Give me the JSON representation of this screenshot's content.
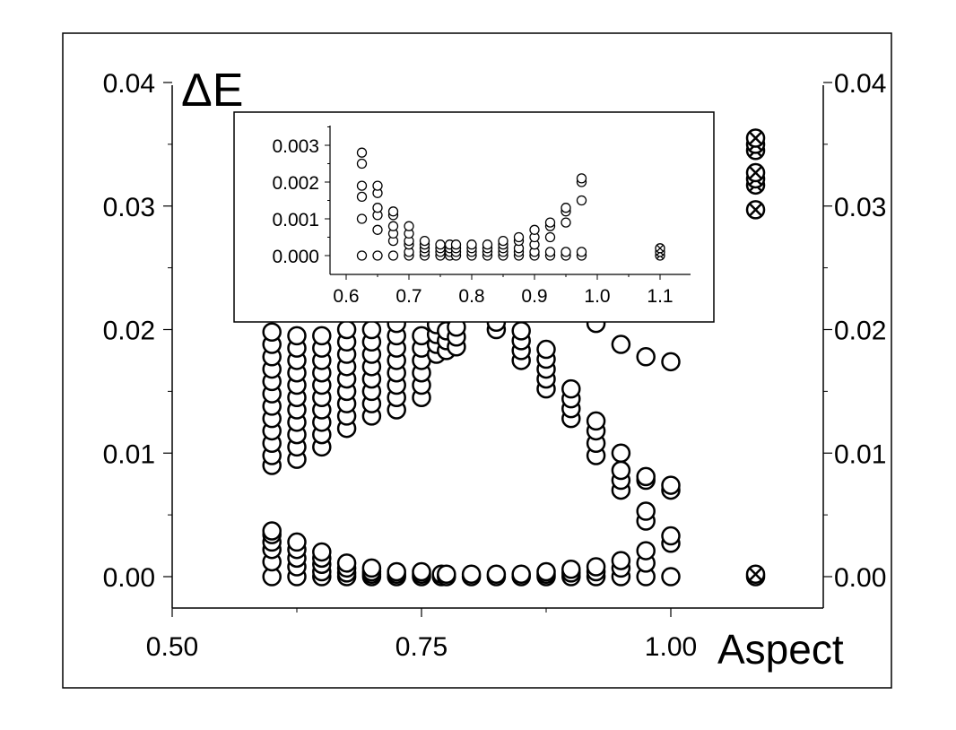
{
  "chart_data": [
    {
      "id": "main",
      "type": "scatter",
      "title": "",
      "ylabel": "ΔE",
      "xlabel": "Aspect",
      "xlim": [
        0.5,
        1.1
      ],
      "ylim": [
        0.0,
        0.04
      ],
      "x_ticks": [
        "0.50",
        "0.75",
        "1.00"
      ],
      "y_ticks": [
        "0.00",
        "0.01",
        "0.02",
        "0.03",
        "0.04"
      ],
      "y_ticks_right": [
        "0.00",
        "0.01",
        "0.02",
        "0.03",
        "0.04"
      ],
      "grid": false,
      "series": [
        {
          "marker": "open-circle",
          "points": [
            [
              0.6,
              0.0
            ],
            [
              0.6,
              0.0012
            ],
            [
              0.6,
              0.0022
            ],
            [
              0.6,
              0.0028
            ],
            [
              0.6,
              0.0034
            ],
            [
              0.6,
              0.0037
            ],
            [
              0.625,
              0.0
            ],
            [
              0.625,
              0.0008
            ],
            [
              0.625,
              0.0015
            ],
            [
              0.625,
              0.0022
            ],
            [
              0.625,
              0.0028
            ],
            [
              0.65,
              0.0
            ],
            [
              0.65,
              0.0004
            ],
            [
              0.65,
              0.001
            ],
            [
              0.65,
              0.0015
            ],
            [
              0.65,
              0.002
            ],
            [
              0.675,
              0.0
            ],
            [
              0.675,
              0.0003
            ],
            [
              0.675,
              0.0007
            ],
            [
              0.675,
              0.0011
            ],
            [
              0.7,
              0.0
            ],
            [
              0.7,
              0.0002
            ],
            [
              0.7,
              0.0004
            ],
            [
              0.7,
              0.0007
            ],
            [
              0.725,
              0.0
            ],
            [
              0.725,
              0.0002
            ],
            [
              0.725,
              0.0004
            ],
            [
              0.75,
              0.0
            ],
            [
              0.75,
              0.0002
            ],
            [
              0.75,
              0.0004
            ],
            [
              0.77,
              0.0
            ],
            [
              0.77,
              0.0002
            ],
            [
              0.775,
              0.0
            ],
            [
              0.775,
              0.0002
            ],
            [
              0.8,
              0.0
            ],
            [
              0.8,
              0.0002
            ],
            [
              0.825,
              0.0
            ],
            [
              0.825,
              0.0002
            ],
            [
              0.85,
              0.0
            ],
            [
              0.85,
              0.0002
            ],
            [
              0.875,
              0.0
            ],
            [
              0.875,
              0.0002
            ],
            [
              0.875,
              0.0004
            ],
            [
              0.9,
              0.0
            ],
            [
              0.9,
              0.0003
            ],
            [
              0.9,
              0.0006
            ],
            [
              0.925,
              0.0
            ],
            [
              0.925,
              0.0004
            ],
            [
              0.925,
              0.0008
            ],
            [
              0.95,
              0.0
            ],
            [
              0.95,
              0.0007
            ],
            [
              0.95,
              0.0013
            ],
            [
              0.975,
              0.0
            ],
            [
              0.975,
              0.0011
            ],
            [
              0.975,
              0.0021
            ],
            [
              1.0,
              0.0
            ],
            [
              1.0,
              0.0027
            ],
            [
              1.0,
              0.0033
            ],
            [
              0.975,
              0.0045
            ],
            [
              0.975,
              0.0053
            ],
            [
              0.6,
              0.009
            ],
            [
              0.6,
              0.0098
            ],
            [
              0.6,
              0.0108
            ],
            [
              0.6,
              0.0118
            ],
            [
              0.6,
              0.0128
            ],
            [
              0.6,
              0.0138
            ],
            [
              0.6,
              0.0148
            ],
            [
              0.6,
              0.0158
            ],
            [
              0.6,
              0.0168
            ],
            [
              0.6,
              0.0178
            ],
            [
              0.6,
              0.0188
            ],
            [
              0.6,
              0.0198
            ],
            [
              0.625,
              0.0095
            ],
            [
              0.625,
              0.0105
            ],
            [
              0.625,
              0.0115
            ],
            [
              0.625,
              0.0125
            ],
            [
              0.625,
              0.0135
            ],
            [
              0.625,
              0.0145
            ],
            [
              0.625,
              0.0155
            ],
            [
              0.625,
              0.0165
            ],
            [
              0.625,
              0.0175
            ],
            [
              0.625,
              0.0185
            ],
            [
              0.625,
              0.0195
            ],
            [
              0.65,
              0.0105
            ],
            [
              0.65,
              0.0115
            ],
            [
              0.65,
              0.0125
            ],
            [
              0.65,
              0.0135
            ],
            [
              0.65,
              0.0145
            ],
            [
              0.65,
              0.0155
            ],
            [
              0.65,
              0.0165
            ],
            [
              0.65,
              0.0175
            ],
            [
              0.65,
              0.0185
            ],
            [
              0.65,
              0.0195
            ],
            [
              0.675,
              0.012
            ],
            [
              0.675,
              0.013
            ],
            [
              0.675,
              0.014
            ],
            [
              0.675,
              0.015
            ],
            [
              0.675,
              0.016
            ],
            [
              0.675,
              0.017
            ],
            [
              0.675,
              0.018
            ],
            [
              0.675,
              0.019
            ],
            [
              0.675,
              0.02
            ],
            [
              0.7,
              0.013
            ],
            [
              0.7,
              0.014
            ],
            [
              0.7,
              0.015
            ],
            [
              0.7,
              0.016
            ],
            [
              0.7,
              0.017
            ],
            [
              0.7,
              0.018
            ],
            [
              0.7,
              0.019
            ],
            [
              0.7,
              0.02
            ],
            [
              0.725,
              0.0135
            ],
            [
              0.725,
              0.0145
            ],
            [
              0.725,
              0.0155
            ],
            [
              0.725,
              0.0165
            ],
            [
              0.725,
              0.0175
            ],
            [
              0.725,
              0.0185
            ],
            [
              0.725,
              0.0195
            ],
            [
              0.725,
              0.0205
            ],
            [
              0.75,
              0.0145
            ],
            [
              0.75,
              0.0155
            ],
            [
              0.75,
              0.0165
            ],
            [
              0.75,
              0.0175
            ],
            [
              0.75,
              0.0185
            ],
            [
              0.75,
              0.0195
            ],
            [
              0.765,
              0.018
            ],
            [
              0.765,
              0.0188
            ],
            [
              0.765,
              0.0196
            ],
            [
              0.765,
              0.0204
            ],
            [
              0.775,
              0.0183
            ],
            [
              0.775,
              0.0191
            ],
            [
              0.775,
              0.0199
            ],
            [
              0.785,
              0.0186
            ],
            [
              0.785,
              0.0194
            ],
            [
              0.785,
              0.0202
            ],
            [
              0.825,
              0.02
            ],
            [
              0.825,
              0.0206
            ],
            [
              0.85,
              0.0175
            ],
            [
              0.85,
              0.0183
            ],
            [
              0.85,
              0.0191
            ],
            [
              0.85,
              0.0199
            ],
            [
              0.875,
              0.0152
            ],
            [
              0.875,
              0.016
            ],
            [
              0.875,
              0.0168
            ],
            [
              0.875,
              0.0176
            ],
            [
              0.875,
              0.0184
            ],
            [
              0.9,
              0.0128
            ],
            [
              0.9,
              0.0136
            ],
            [
              0.9,
              0.0144
            ],
            [
              0.9,
              0.0152
            ],
            [
              0.925,
              0.0098
            ],
            [
              0.925,
              0.0108
            ],
            [
              0.925,
              0.0118
            ],
            [
              0.925,
              0.0126
            ],
            [
              0.95,
              0.007
            ],
            [
              0.95,
              0.0078
            ],
            [
              0.95,
              0.0086
            ],
            [
              0.95,
              0.01
            ],
            [
              0.975,
              0.0078
            ],
            [
              0.975,
              0.0081
            ],
            [
              1.0,
              0.007
            ],
            [
              1.0,
              0.0074
            ],
            [
              0.925,
              0.0205
            ],
            [
              0.95,
              0.0188
            ],
            [
              0.975,
              0.0178
            ],
            [
              1.0,
              0.0174
            ]
          ]
        },
        {
          "marker": "crossed-circle",
          "points": [
            [
              1.085,
              0.0
            ],
            [
              1.085,
              0.0002
            ],
            [
              1.085,
              0.0297
            ],
            [
              1.085,
              0.0317
            ],
            [
              1.085,
              0.0322
            ],
            [
              1.085,
              0.0327
            ],
            [
              1.085,
              0.0345
            ],
            [
              1.085,
              0.035
            ],
            [
              1.085,
              0.0355
            ]
          ]
        }
      ]
    },
    {
      "id": "inset",
      "type": "scatter",
      "title": "",
      "xlim": [
        0.55,
        1.15
      ],
      "ylim": [
        -0.0003,
        0.0035
      ],
      "x_ticks": [
        "0.6",
        "0.7",
        "0.8",
        "0.9",
        "1.0",
        "1.1"
      ],
      "y_ticks": [
        "0.000",
        "0.001",
        "0.002",
        "0.003"
      ],
      "grid": false,
      "series": [
        {
          "marker": "open-circle",
          "points": [
            [
              0.625,
              0.0
            ],
            [
              0.625,
              0.001
            ],
            [
              0.625,
              0.0016
            ],
            [
              0.625,
              0.0019
            ],
            [
              0.625,
              0.0025
            ],
            [
              0.625,
              0.0028
            ],
            [
              0.65,
              0.0
            ],
            [
              0.65,
              0.0007
            ],
            [
              0.65,
              0.0011
            ],
            [
              0.65,
              0.0013
            ],
            [
              0.65,
              0.0017
            ],
            [
              0.65,
              0.0019
            ],
            [
              0.675,
              0.0
            ],
            [
              0.675,
              0.0004
            ],
            [
              0.675,
              0.0006
            ],
            [
              0.675,
              0.0008
            ],
            [
              0.675,
              0.0011
            ],
            [
              0.675,
              0.0012
            ],
            [
              0.7,
              0.0
            ],
            [
              0.7,
              0.0001
            ],
            [
              0.7,
              0.0003
            ],
            [
              0.7,
              0.0004
            ],
            [
              0.7,
              0.0006
            ],
            [
              0.7,
              0.0008
            ],
            [
              0.725,
              0.0
            ],
            [
              0.725,
              0.0001
            ],
            [
              0.725,
              0.0002
            ],
            [
              0.725,
              0.0003
            ],
            [
              0.725,
              0.0004
            ],
            [
              0.75,
              0.0
            ],
            [
              0.75,
              0.0001
            ],
            [
              0.75,
              0.0002
            ],
            [
              0.75,
              0.0003
            ],
            [
              0.765,
              0.0
            ],
            [
              0.765,
              0.0001
            ],
            [
              0.765,
              0.0002
            ],
            [
              0.765,
              0.0003
            ],
            [
              0.775,
              0.0
            ],
            [
              0.775,
              0.0001
            ],
            [
              0.775,
              0.0002
            ],
            [
              0.775,
              0.0003
            ],
            [
              0.8,
              0.0
            ],
            [
              0.8,
              0.0001
            ],
            [
              0.8,
              0.0002
            ],
            [
              0.8,
              0.0003
            ],
            [
              0.825,
              0.0
            ],
            [
              0.825,
              0.0001
            ],
            [
              0.825,
              0.0002
            ],
            [
              0.825,
              0.0003
            ],
            [
              0.85,
              0.0
            ],
            [
              0.85,
              0.0001
            ],
            [
              0.85,
              0.0002
            ],
            [
              0.85,
              0.0003
            ],
            [
              0.85,
              0.0004
            ],
            [
              0.875,
              0.0
            ],
            [
              0.875,
              0.0001
            ],
            [
              0.875,
              0.0002
            ],
            [
              0.875,
              0.0004
            ],
            [
              0.875,
              0.0005
            ],
            [
              0.9,
              0.0
            ],
            [
              0.9,
              0.0001
            ],
            [
              0.9,
              0.0003
            ],
            [
              0.9,
              0.0005
            ],
            [
              0.9,
              0.0007
            ],
            [
              0.925,
              0.0
            ],
            [
              0.925,
              0.0001
            ],
            [
              0.925,
              0.0005
            ],
            [
              0.925,
              0.0008
            ],
            [
              0.925,
              0.0009
            ],
            [
              0.95,
              0.0
            ],
            [
              0.95,
              0.0001
            ],
            [
              0.95,
              0.0009
            ],
            [
              0.95,
              0.0012
            ],
            [
              0.95,
              0.0013
            ],
            [
              0.975,
              0.0
            ],
            [
              0.975,
              0.0001
            ],
            [
              0.975,
              0.0015
            ],
            [
              0.975,
              0.002
            ],
            [
              0.975,
              0.0021
            ]
          ]
        },
        {
          "marker": "crossed-circle",
          "points": [
            [
              1.1,
              0.0
            ],
            [
              1.1,
              0.0001
            ],
            [
              1.1,
              0.0002
            ]
          ]
        }
      ]
    }
  ]
}
